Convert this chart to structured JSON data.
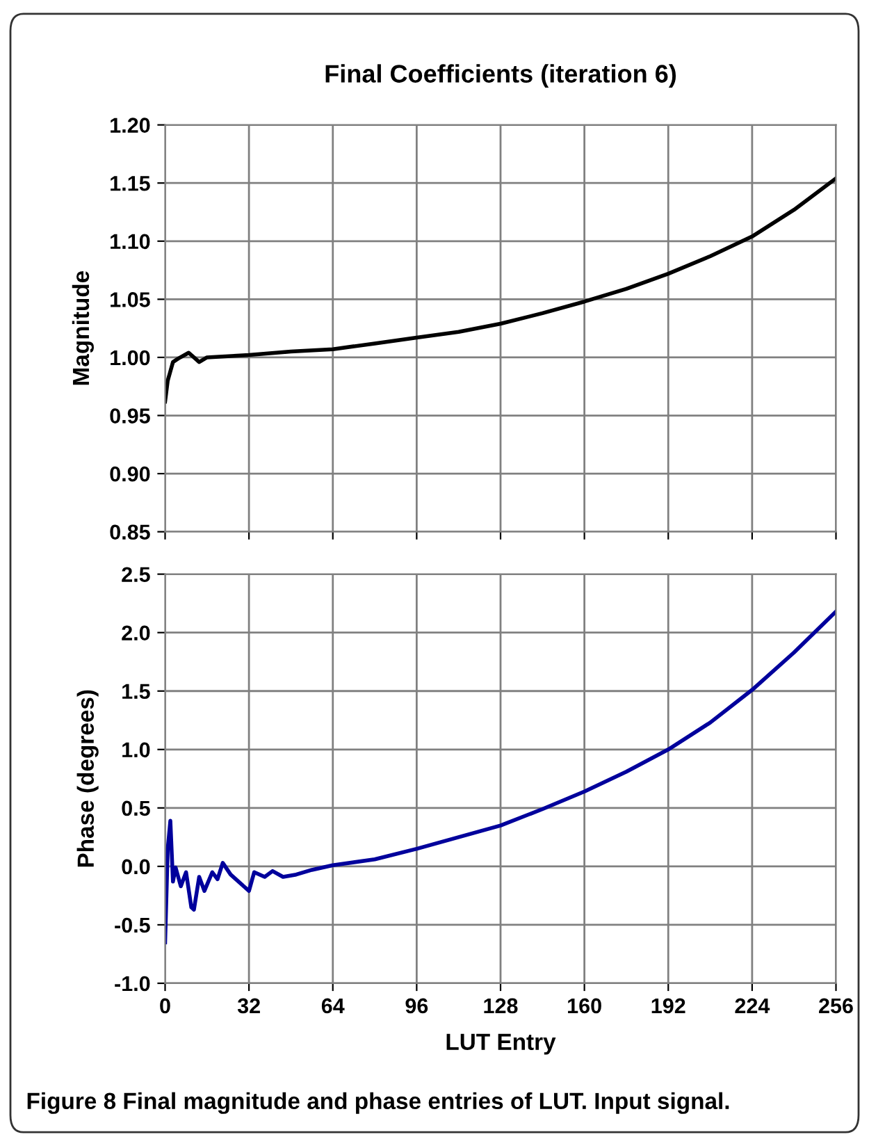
{
  "chart_data": [
    {
      "type": "line",
      "title": "Final Coefficients (iteration 6)",
      "ylabel": "Magnitude",
      "x": [
        0,
        1,
        2,
        3,
        5,
        9,
        13,
        16,
        32,
        48,
        64,
        80,
        96,
        112,
        128,
        144,
        160,
        176,
        192,
        208,
        224,
        240,
        256
      ],
      "series": [
        {
          "color": "#000000",
          "values": [
            0.962,
            0.98,
            0.988,
            0.996,
            0.999,
            1.004,
            0.996,
            1.0,
            1.002,
            1.005,
            1.007,
            1.012,
            1.017,
            1.022,
            1.029,
            1.038,
            1.048,
            1.059,
            1.072,
            1.087,
            1.104,
            1.127,
            1.154
          ]
        }
      ],
      "xlim": [
        0,
        256
      ],
      "xticks": [
        0,
        32,
        64,
        96,
        128,
        160,
        192,
        224,
        256
      ],
      "ylim": [
        0.85,
        1.2
      ],
      "yticks": [
        {
          "value": 0.85,
          "label": "0.85"
        },
        {
          "value": 0.9,
          "label": "0.90"
        },
        {
          "value": 0.95,
          "label": "0.95"
        },
        {
          "value": 1.0,
          "label": "1.00"
        },
        {
          "value": 1.05,
          "label": "1.05"
        },
        {
          "value": 1.1,
          "label": "1.10"
        },
        {
          "value": 1.15,
          "label": "1.15"
        },
        {
          "value": 1.2,
          "label": "1.20"
        }
      ],
      "grid": true,
      "tick_labels": "y",
      "marker": "none",
      "line_style": "solid"
    },
    {
      "type": "line",
      "xlabel": "LUT Entry",
      "ylabel": "Phase (degrees)",
      "x": [
        0,
        1,
        2,
        3,
        4,
        6,
        8,
        10,
        11,
        13,
        15,
        18,
        20,
        22,
        25,
        30,
        32,
        34,
        38,
        41,
        45,
        50,
        56,
        64,
        80,
        96,
        112,
        128,
        144,
        160,
        176,
        192,
        208,
        224,
        240,
        256
      ],
      "series": [
        {
          "color": "#00009c",
          "values": [
            -0.65,
            0.15,
            0.39,
            -0.13,
            -0.01,
            -0.17,
            -0.05,
            -0.35,
            -0.37,
            -0.09,
            -0.21,
            -0.05,
            -0.11,
            0.03,
            -0.07,
            -0.17,
            -0.21,
            -0.05,
            -0.09,
            -0.04,
            -0.09,
            -0.07,
            -0.03,
            0.01,
            0.06,
            0.15,
            0.25,
            0.35,
            0.49,
            0.64,
            0.81,
            1.0,
            1.23,
            1.51,
            1.83,
            2.18
          ]
        }
      ],
      "xlim": [
        0,
        256
      ],
      "xticks": [
        0,
        32,
        64,
        96,
        128,
        160,
        192,
        224,
        256
      ],
      "ylim": [
        -1.0,
        2.5
      ],
      "yticks": [
        {
          "value": -1.0,
          "label": "-1.0"
        },
        {
          "value": -0.5,
          "label": "-0.5"
        },
        {
          "value": 0.0,
          "label": "0.0"
        },
        {
          "value": 0.5,
          "label": "0.5"
        },
        {
          "value": 1.0,
          "label": "1.0"
        },
        {
          "value": 1.5,
          "label": "1.5"
        },
        {
          "value": 2.0,
          "label": "2.0"
        },
        {
          "value": 2.5,
          "label": "2.5"
        }
      ],
      "grid": true,
      "marker": "none",
      "line_style": "solid",
      "annotations": [
        "Figure 8 Final magnitude and phase entries of LUT. Input signal."
      ]
    }
  ]
}
